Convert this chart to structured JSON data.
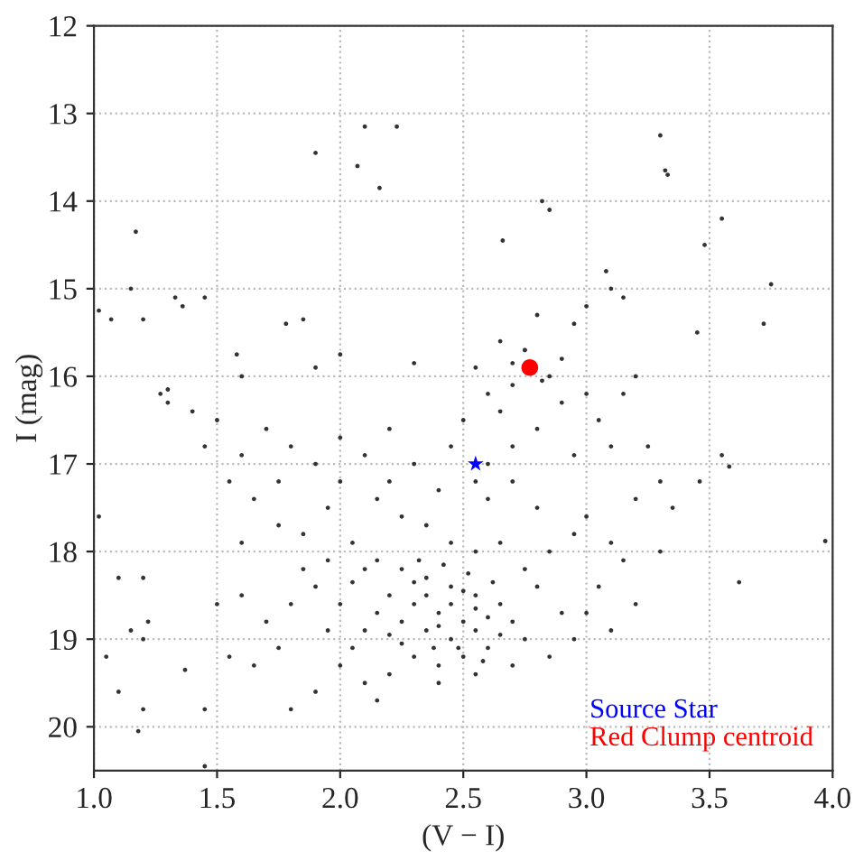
{
  "chart_data": {
    "type": "scatter",
    "xlabel": "(V − I)",
    "ylabel": "I (mag)",
    "xlim": [
      1.0,
      4.0
    ],
    "ylim": [
      20.5,
      12
    ],
    "xticks": [
      {
        "value": 1.0,
        "label": "1.0"
      },
      {
        "value": 1.5,
        "label": "1.5"
      },
      {
        "value": 2.0,
        "label": "2.0"
      },
      {
        "value": 2.5,
        "label": "2.5"
      },
      {
        "value": 3.0,
        "label": "3.0"
      },
      {
        "value": 3.5,
        "label": "3.5"
      },
      {
        "value": 4.0,
        "label": "4.0"
      }
    ],
    "yticks": [
      12,
      13,
      14,
      15,
      16,
      17,
      18,
      19,
      20
    ],
    "grid": true,
    "legend": "bottom right",
    "series": [
      {
        "color": "#333333",
        "marker": "circle",
        "x": [
          1.17,
          2.07,
          2.1,
          2.23,
          2.16,
          1.9,
          3.3,
          3.33,
          3.32,
          3.48,
          3.55,
          1.15,
          1.02,
          1.07,
          1.2,
          1.33,
          1.36,
          1.45,
          1.78,
          1.85,
          1.58,
          1.9,
          2.0,
          2.3,
          1.6,
          1.3,
          1.3,
          1.27,
          3.75,
          3.72,
          3.1,
          3.0,
          2.66,
          2.82,
          2.85,
          3.08,
          3.15,
          3.45,
          3.58,
          3.62,
          3.97,
          3.46,
          1.02,
          1.1,
          1.2,
          1.05,
          1.15,
          1.2,
          1.22,
          1.37,
          1.1,
          1.2,
          1.45,
          1.45,
          1.18,
          2.3,
          2.4,
          2.5,
          2.55,
          2.45,
          2.35,
          2.25,
          2.2,
          2.15,
          2.1,
          2.05,
          2.0,
          1.95,
          1.9,
          1.85,
          1.8,
          1.75,
          1.7,
          1.65,
          1.6,
          1.55,
          1.5,
          1.6,
          1.75,
          1.85,
          1.95,
          2.05,
          2.15,
          2.25,
          2.35,
          2.45,
          2.55,
          2.65,
          2.7,
          2.75,
          2.6,
          2.5,
          2.4,
          2.3,
          2.2,
          2.1,
          2.0,
          1.9,
          1.8,
          2.15,
          2.4,
          2.55,
          2.7,
          2.85,
          2.95,
          2.9,
          2.8,
          2.75,
          2.85,
          2.95,
          2.65,
          2.55,
          2.45,
          2.35,
          2.25,
          2.15,
          2.4,
          2.6,
          2.7,
          2.8,
          3.0,
          3.1,
          3.15,
          3.05,
          3.0,
          3.2,
          3.1,
          2.35,
          2.45,
          2.55,
          2.5,
          2.4,
          2.6,
          2.65,
          2.3,
          2.2,
          2.05,
          1.95,
          2.1,
          2.25,
          2.48,
          2.62,
          2.38,
          2.52,
          2.32,
          2.58,
          2.42,
          2.6,
          2.7,
          2.8,
          2.9,
          2.85,
          2.75,
          2.7,
          2.65,
          2.9,
          3.0,
          3.05,
          3.1,
          2.95,
          3.15,
          3.2,
          2.6,
          2.55,
          2.5,
          2.45,
          2.55,
          2.65,
          2.8,
          2.95,
          2.75,
          2.82,
          2.7,
          3.25,
          3.3,
          3.35,
          3.3,
          3.2,
          3.55,
          2.3,
          2.2,
          2.1,
          2.0,
          1.9,
          1.8,
          1.7,
          1.6,
          1.5,
          1.45,
          1.4,
          1.55,
          1.65,
          1.75,
          2.0,
          2.2
        ],
        "values": [
          14.35,
          13.6,
          13.15,
          13.15,
          13.85,
          13.45,
          13.25,
          13.7,
          13.65,
          14.5,
          14.2,
          15.0,
          15.25,
          15.35,
          15.35,
          15.1,
          15.2,
          15.1,
          15.4,
          15.35,
          15.75,
          15.9,
          15.75,
          15.85,
          16.0,
          16.15,
          16.3,
          16.2,
          14.95,
          15.4,
          15.0,
          15.2,
          14.45,
          14.0,
          14.1,
          14.8,
          15.1,
          15.5,
          17.03,
          18.35,
          17.88,
          17.2,
          17.6,
          18.3,
          18.3,
          19.2,
          18.9,
          19.0,
          18.8,
          19.35,
          19.6,
          19.8,
          20.45,
          19.8,
          20.05,
          18.6,
          18.7,
          18.8,
          18.9,
          19.0,
          18.9,
          18.8,
          18.5,
          18.7,
          18.9,
          19.1,
          18.6,
          18.9,
          18.4,
          18.2,
          18.6,
          19.1,
          18.8,
          19.3,
          18.5,
          19.2,
          18.6,
          17.9,
          17.7,
          17.8,
          17.5,
          17.9,
          18.1,
          18.2,
          18.3,
          18.4,
          18.5,
          18.6,
          18.8,
          19.0,
          19.1,
          19.2,
          19.3,
          19.2,
          19.4,
          19.5,
          19.3,
          19.6,
          19.8,
          19.7,
          19.5,
          19.4,
          19.3,
          19.2,
          19.0,
          18.7,
          18.4,
          18.2,
          18.0,
          17.8,
          17.9,
          18.0,
          17.9,
          17.7,
          17.6,
          17.4,
          17.3,
          17.4,
          17.2,
          17.5,
          17.6,
          17.9,
          18.1,
          18.4,
          18.7,
          18.6,
          18.9,
          18.5,
          18.6,
          18.65,
          18.45,
          18.85,
          18.75,
          18.95,
          18.35,
          18.95,
          18.35,
          18.1,
          18.2,
          19.05,
          19.1,
          18.35,
          19.1,
          18.25,
          18.1,
          19.25,
          18.15,
          17.0,
          16.8,
          16.6,
          16.3,
          16.0,
          15.7,
          16.1,
          16.4,
          15.8,
          16.2,
          16.5,
          16.8,
          16.9,
          16.2,
          16.0,
          16.2,
          15.9,
          16.5,
          16.8,
          17.2,
          15.6,
          15.3,
          15.4,
          15.7,
          16.05,
          15.85,
          16.8,
          17.2,
          17.5,
          18.0,
          17.4,
          16.9,
          17.0,
          16.6,
          16.9,
          16.7,
          17.0,
          16.8,
          16.6,
          16.9,
          16.5,
          16.8,
          16.4,
          17.2,
          17.4,
          17.2,
          17.2,
          17.2
        ]
      },
      {
        "name": "Source Star",
        "color": "#0000ff",
        "marker": "star",
        "x": [
          2.55
        ],
        "values": [
          17.0
        ]
      },
      {
        "name": "Red Clump centroid",
        "color": "#ff0000",
        "marker": "circle",
        "x": [
          2.77
        ],
        "values": [
          15.9
        ]
      }
    ]
  }
}
